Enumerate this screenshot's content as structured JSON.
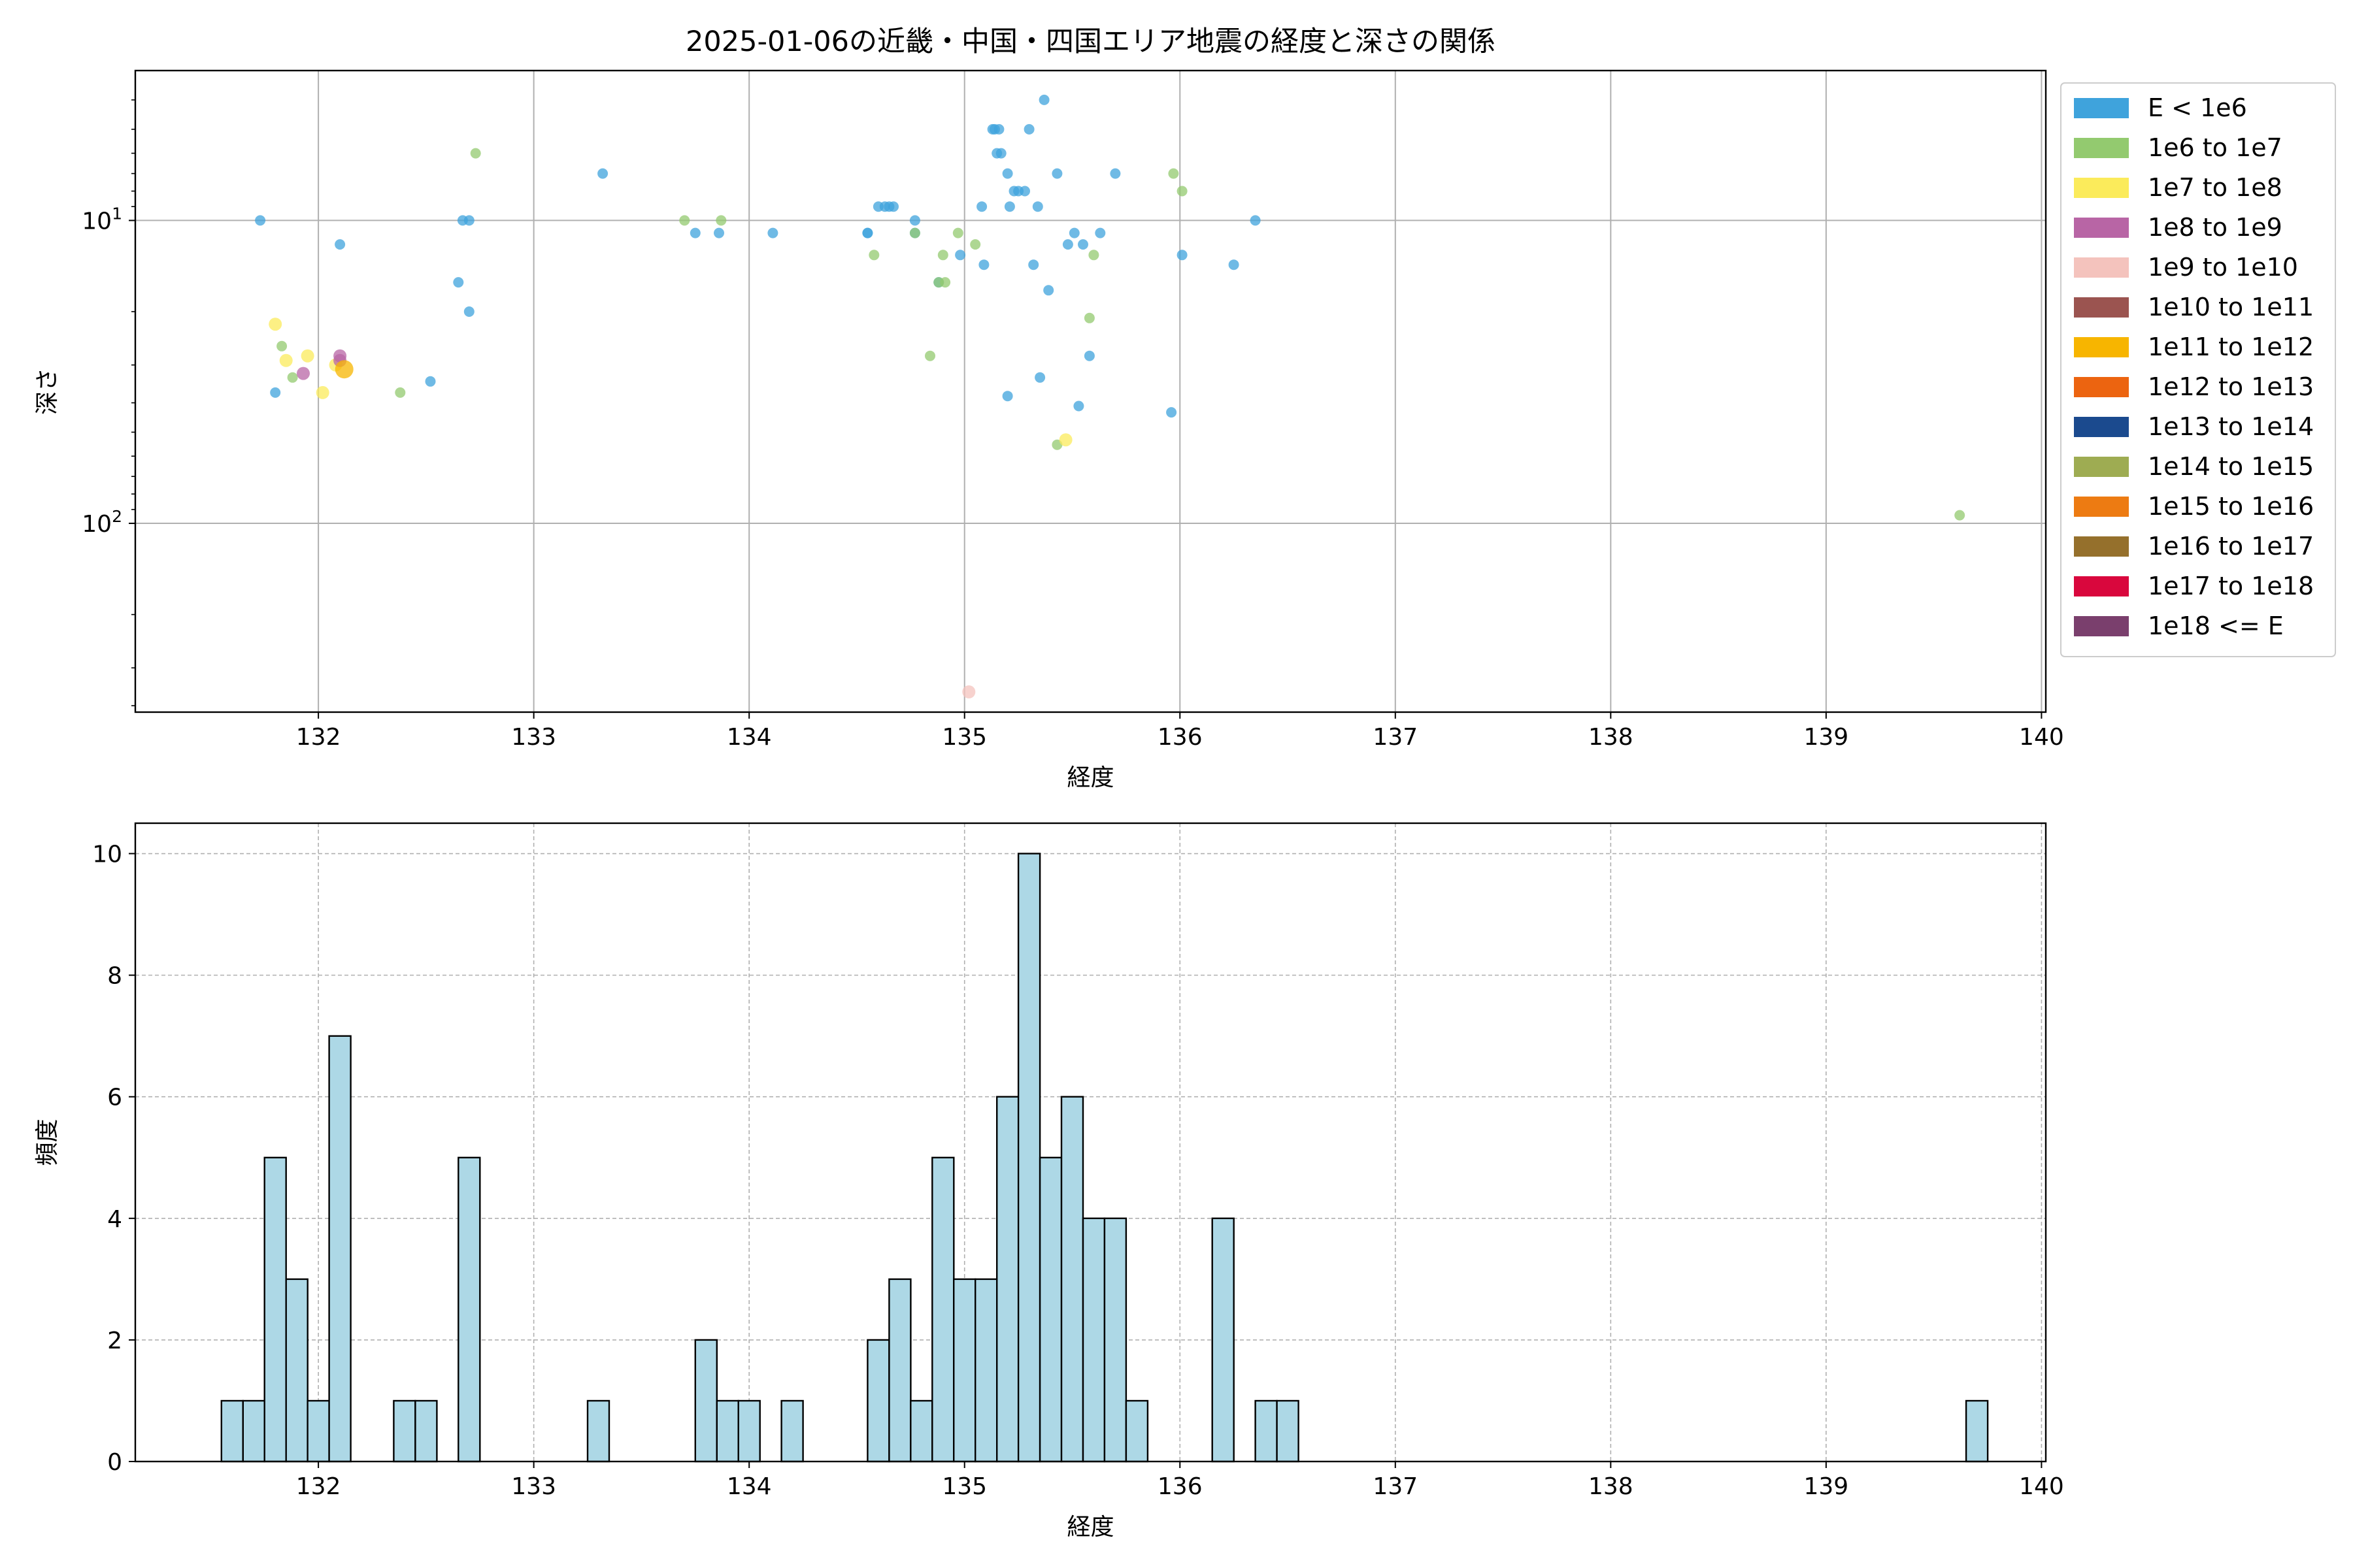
{
  "chart_data": [
    {
      "type": "scatter",
      "title": "2025-01-06の近畿・中国・四国エリア地震の経度と深さの関係",
      "xlabel": "経度",
      "ylabel": "深さ",
      "xlim": [
        131.15,
        140.02
      ],
      "ylim": [
        420,
        3.2
      ],
      "y_scale": "log",
      "y_inverted": true,
      "grid": true,
      "legend_position": "outside-right",
      "xticks": [
        132,
        133,
        134,
        135,
        136,
        137,
        138,
        139,
        140
      ],
      "xtick_labels": [
        "132",
        "133",
        "134",
        "135",
        "136",
        "137",
        "138",
        "139",
        "140"
      ],
      "yticks": [
        10,
        100
      ],
      "ytick_labels": [
        {
          "base": "10",
          "exp": "1"
        },
        {
          "base": "10",
          "exp": "2"
        }
      ],
      "legend": [
        {
          "label": "E < 1e6",
          "color": "#3fa3dc"
        },
        {
          "label": "1e6 to 1e7",
          "color": "#93ca6f"
        },
        {
          "label": "1e7 to 1e8",
          "color": "#fbeb5b"
        },
        {
          "label": "1e8 to 1e9",
          "color": "#b865a5"
        },
        {
          "label": "1e9 to 1e10",
          "color": "#f4c3bd"
        },
        {
          "label": "1e10 to 1e11",
          "color": "#9b5450"
        },
        {
          "label": "1e11 to 1e12",
          "color": "#f7b500"
        },
        {
          "label": "1e12 to 1e13",
          "color": "#ec6410"
        },
        {
          "label": "1e13 to 1e14",
          "color": "#1b4a8e"
        },
        {
          "label": "1e14 to 1e15",
          "color": "#9eac52"
        },
        {
          "label": "1e15 to 1e16",
          "color": "#ed7b12"
        },
        {
          "label": "1e16 to 1e17",
          "color": "#95702c"
        },
        {
          "label": "1e17 to 1e18",
          "color": "#d9073d"
        },
        {
          "label": "1e18 <= E",
          "color": "#7a3f6d"
        }
      ],
      "series": [
        {
          "class": 0,
          "points": [
            [
              131.73,
              10
            ],
            [
              131.8,
              37
            ],
            [
              132.1,
              12
            ],
            [
              132.52,
              34
            ],
            [
              132.65,
              16
            ],
            [
              132.67,
              10
            ],
            [
              132.7,
              10
            ],
            [
              132.7,
              20
            ],
            [
              133.32,
              7
            ],
            [
              133.75,
              11
            ],
            [
              133.86,
              11
            ],
            [
              134.11,
              11
            ],
            [
              134.55,
              11
            ],
            [
              134.55,
              11
            ],
            [
              134.6,
              9
            ],
            [
              134.63,
              9
            ],
            [
              134.65,
              9
            ],
            [
              134.67,
              9
            ],
            [
              134.77,
              10
            ],
            [
              134.77,
              11
            ],
            [
              134.88,
              16
            ],
            [
              134.98,
              13
            ],
            [
              135.08,
              9
            ],
            [
              135.09,
              14
            ],
            [
              135.13,
              5
            ],
            [
              135.14,
              5
            ],
            [
              135.15,
              6
            ],
            [
              135.16,
              5
            ],
            [
              135.17,
              6
            ],
            [
              135.2,
              7
            ],
            [
              135.21,
              9
            ],
            [
              135.23,
              8
            ],
            [
              135.25,
              8
            ],
            [
              135.28,
              8
            ],
            [
              135.3,
              5
            ],
            [
              135.32,
              14
            ],
            [
              135.34,
              9
            ],
            [
              135.35,
              33
            ],
            [
              135.37,
              4
            ],
            [
              135.39,
              17
            ],
            [
              135.43,
              7
            ],
            [
              135.48,
              12
            ],
            [
              135.51,
              11
            ],
            [
              135.53,
              41
            ],
            [
              135.55,
              12
            ],
            [
              135.58,
              28
            ],
            [
              135.63,
              11
            ],
            [
              135.7,
              7
            ],
            [
              135.96,
              43
            ],
            [
              136.01,
              13
            ],
            [
              136.25,
              14
            ],
            [
              136.35,
              10
            ],
            [
              135.2,
              38
            ]
          ]
        },
        {
          "class": 1,
          "points": [
            [
              131.83,
              26
            ],
            [
              131.88,
              33
            ],
            [
              132.38,
              37
            ],
            [
              132.73,
              6
            ],
            [
              133.7,
              10
            ],
            [
              133.87,
              10
            ],
            [
              134.58,
              13
            ],
            [
              134.77,
              11
            ],
            [
              134.84,
              28
            ],
            [
              134.88,
              16
            ],
            [
              134.9,
              13
            ],
            [
              134.91,
              16
            ],
            [
              134.97,
              11
            ],
            [
              135.05,
              12
            ],
            [
              135.43,
              55
            ],
            [
              135.58,
              21
            ],
            [
              135.6,
              13
            ],
            [
              135.97,
              7
            ],
            [
              136.01,
              8
            ],
            [
              139.62,
              94
            ]
          ]
        },
        {
          "class": 2,
          "points": [
            [
              131.8,
              22
            ],
            [
              131.85,
              29
            ],
            [
              131.95,
              28
            ],
            [
              132.02,
              37
            ],
            [
              132.08,
              30
            ],
            [
              135.47,
              53
            ]
          ]
        },
        {
          "class": 3,
          "points": [
            [
              131.93,
              32
            ],
            [
              132.1,
              28
            ],
            [
              132.1,
              29
            ]
          ]
        },
        {
          "class": 4,
          "points": [
            [
              135.02,
              360
            ]
          ]
        },
        {
          "class": 6,
          "points": [
            [
              132.12,
              31
            ]
          ]
        }
      ]
    },
    {
      "type": "bar",
      "xlabel": "経度",
      "ylabel": "頻度",
      "xlim": [
        131.15,
        140.02
      ],
      "ylim": [
        0,
        10.5
      ],
      "grid": true,
      "bar_color": "#add8e6",
      "edge_color": "#000000",
      "bin_start": 131.55,
      "bin_width": 0.1,
      "values": [
        1,
        1,
        5,
        3,
        1,
        7,
        0,
        0,
        1,
        1,
        0,
        5,
        0,
        0,
        0,
        0,
        0,
        1,
        0,
        0,
        0,
        0,
        2,
        1,
        1,
        0,
        1,
        0,
        0,
        0,
        2,
        3,
        1,
        5,
        3,
        3,
        6,
        10,
        5,
        6,
        4,
        4,
        1,
        0,
        0,
        0,
        4,
        0,
        1,
        1,
        0,
        0,
        0,
        0,
        0,
        0,
        0,
        0,
        0,
        0,
        0,
        0,
        0,
        0,
        0,
        0,
        0,
        0,
        0,
        0,
        0,
        0,
        0,
        0,
        0,
        0,
        0,
        0,
        0,
        0,
        0,
        1
      ],
      "xticks": [
        132,
        133,
        134,
        135,
        136,
        137,
        138,
        139,
        140
      ],
      "xtick_labels": [
        "132",
        "133",
        "134",
        "135",
        "136",
        "137",
        "138",
        "139",
        "140"
      ],
      "yticks": [
        0,
        2,
        4,
        6,
        8,
        10
      ],
      "ytick_labels": [
        "0",
        "2",
        "4",
        "6",
        "8",
        "10"
      ]
    }
  ]
}
